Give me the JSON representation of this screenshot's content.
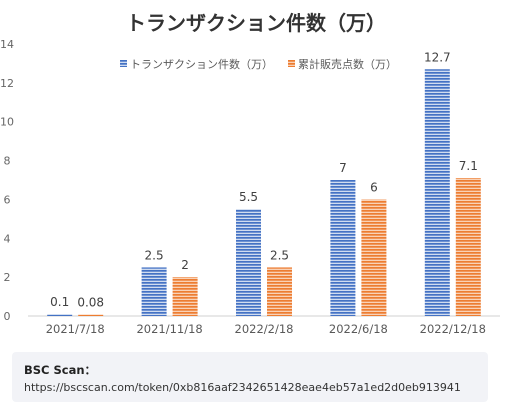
{
  "chart_data": {
    "type": "bar",
    "title": "トランザクション件数（万）",
    "categories": [
      "2021/7/18",
      "2021/11/18",
      "2022/2/18",
      "2022/6/18",
      "2022/12/18"
    ],
    "series": [
      {
        "name": "トランザクション件数（万）",
        "values": [
          0.1,
          2.5,
          5.5,
          7,
          12.7
        ],
        "color": "#4472c4"
      },
      {
        "name": "累計販売点数（万）",
        "values": [
          0.08,
          2,
          2.5,
          6,
          7.1
        ],
        "color": "#ed7d31"
      }
    ],
    "data_labels": [
      [
        "0.1",
        "2.5",
        "5.5",
        "7",
        "12.7"
      ],
      [
        "0.08",
        "2",
        "2.5",
        "6",
        "7.1"
      ]
    ],
    "yticks": [
      "0",
      "2",
      "4",
      "6",
      "8",
      "10",
      "12",
      "14"
    ],
    "ylim": [
      0,
      14
    ],
    "grid": false,
    "legend_position": "top-right"
  },
  "source": {
    "title": "BSC Scan：",
    "url": "https://bscscan.com/token/0xb816aaf2342651428eae4eb57a1ed2d0eb913941"
  }
}
